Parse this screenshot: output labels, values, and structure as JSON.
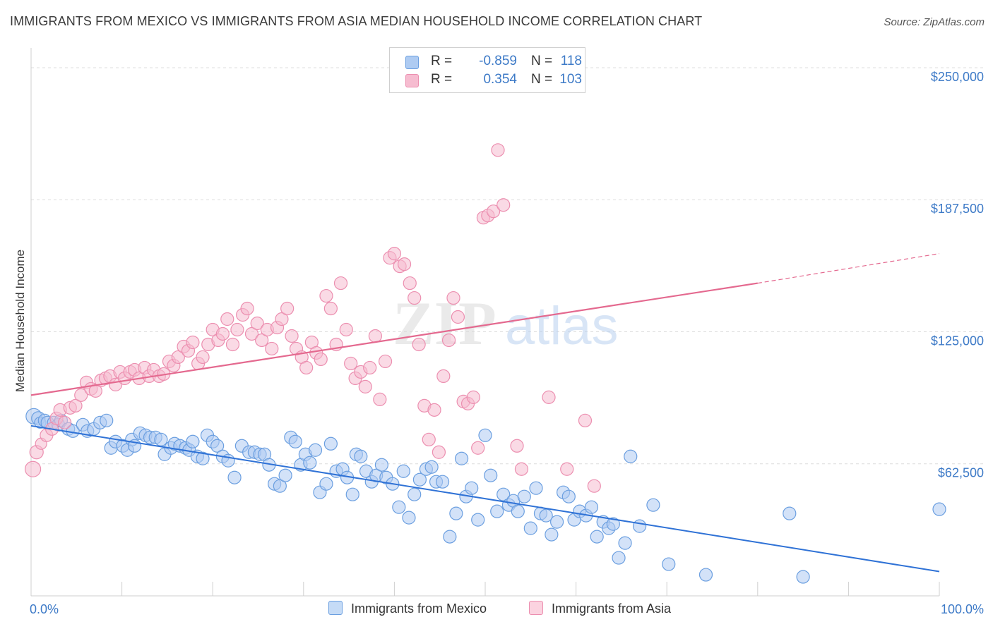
{
  "title": "IMMIGRANTS FROM MEXICO VS IMMIGRANTS FROM ASIA MEDIAN HOUSEHOLD INCOME CORRELATION CHART",
  "source": "Source: ZipAtlas.com",
  "watermark": "ZIPatlas",
  "colors": {
    "mexico_fill": "#aecbf2",
    "mexico_stroke": "#6b9fe0",
    "mexico_line": "#2f72d6",
    "asia_fill": "#f6bcd0",
    "asia_stroke": "#ec8fb0",
    "asia_line": "#e4698f",
    "axis_text": "#3d7ac7",
    "grid": "#dcdcdc"
  },
  "legend": {
    "r_label": "R =",
    "n_label": "N =",
    "rows": [
      {
        "r": "-0.859",
        "n": "118"
      },
      {
        "r": "0.354",
        "n": "103"
      }
    ]
  },
  "chart_data": {
    "type": "scatter",
    "title": "IMMIGRANTS FROM MEXICO VS IMMIGRANTS FROM ASIA MEDIAN HOUSEHOLD INCOME CORRELATION CHART",
    "xlabel": "",
    "ylabel": "Median Household Income",
    "x_tick_labels": [
      "0.0%",
      "100.0%"
    ],
    "y_tick_labels": [
      "$62,500",
      "$125,000",
      "$187,500",
      "$250,000"
    ],
    "y_ticks": [
      62500,
      125000,
      187500,
      250000
    ],
    "xlim": [
      0,
      100
    ],
    "ylim": [
      0,
      256000
    ],
    "grid": true,
    "legend_position": "top-center",
    "series": [
      {
        "name": "Immigrants from Mexico",
        "r": -0.859,
        "n": 118,
        "trend": {
          "x": [
            0,
            100
          ],
          "y": [
            80500,
            11500
          ],
          "dashed_from": null
        },
        "points": [
          [
            0.3,
            85
          ],
          [
            0.8,
            84
          ],
          [
            1.0,
            82
          ],
          [
            1.5,
            83
          ],
          [
            1.8,
            82
          ],
          [
            2.5,
            82
          ],
          [
            3.0,
            81
          ],
          [
            3.3,
            83
          ],
          [
            4.1,
            79
          ],
          [
            4.6,
            78
          ],
          [
            5.7,
            81
          ],
          [
            6.2,
            78
          ],
          [
            6.9,
            79
          ],
          [
            7.6,
            82
          ],
          [
            8.3,
            83
          ],
          [
            8.8,
            70
          ],
          [
            9.3,
            73
          ],
          [
            10.1,
            71
          ],
          [
            10.6,
            69
          ],
          [
            11.1,
            74
          ],
          [
            11.4,
            71
          ],
          [
            12.0,
            77
          ],
          [
            12.6,
            76
          ],
          [
            13.1,
            75
          ],
          [
            13.7,
            75
          ],
          [
            14.3,
            74
          ],
          [
            14.7,
            67
          ],
          [
            15.4,
            70
          ],
          [
            15.8,
            72
          ],
          [
            16.4,
            71
          ],
          [
            17.0,
            70
          ],
          [
            17.4,
            69
          ],
          [
            17.8,
            73
          ],
          [
            18.3,
            66
          ],
          [
            18.9,
            65
          ],
          [
            19.4,
            76
          ],
          [
            20.0,
            73
          ],
          [
            20.5,
            71
          ],
          [
            21.1,
            66
          ],
          [
            21.7,
            64
          ],
          [
            22.4,
            56
          ],
          [
            23.2,
            71
          ],
          [
            24.0,
            68
          ],
          [
            24.6,
            68
          ],
          [
            25.2,
            67
          ],
          [
            25.7,
            67
          ],
          [
            26.2,
            62
          ],
          [
            26.8,
            53
          ],
          [
            27.4,
            52
          ],
          [
            28.0,
            57
          ],
          [
            28.6,
            75
          ],
          [
            29.1,
            73
          ],
          [
            29.7,
            62
          ],
          [
            30.2,
            67
          ],
          [
            30.7,
            63
          ],
          [
            31.3,
            69
          ],
          [
            31.8,
            49
          ],
          [
            32.5,
            53
          ],
          [
            33.0,
            72
          ],
          [
            33.6,
            59
          ],
          [
            34.3,
            60
          ],
          [
            34.8,
            56
          ],
          [
            35.4,
            48
          ],
          [
            35.8,
            67
          ],
          [
            36.3,
            66
          ],
          [
            36.9,
            59
          ],
          [
            37.5,
            54
          ],
          [
            38.0,
            57
          ],
          [
            38.6,
            62
          ],
          [
            39.1,
            56
          ],
          [
            39.8,
            53
          ],
          [
            40.5,
            42
          ],
          [
            41.0,
            59
          ],
          [
            41.6,
            37
          ],
          [
            42.2,
            48
          ],
          [
            42.8,
            55
          ],
          [
            43.5,
            60
          ],
          [
            44.1,
            61
          ],
          [
            44.6,
            54
          ],
          [
            45.3,
            54
          ],
          [
            46.1,
            28
          ],
          [
            46.8,
            39
          ],
          [
            47.4,
            65
          ],
          [
            47.9,
            47
          ],
          [
            48.5,
            51
          ],
          [
            49.2,
            36
          ],
          [
            50.0,
            76
          ],
          [
            50.6,
            57
          ],
          [
            51.3,
            40
          ],
          [
            52.0,
            48
          ],
          [
            52.6,
            43
          ],
          [
            53.1,
            45
          ],
          [
            53.6,
            40
          ],
          [
            54.3,
            47
          ],
          [
            55.0,
            32
          ],
          [
            55.6,
            51
          ],
          [
            56.1,
            39
          ],
          [
            56.7,
            38
          ],
          [
            57.3,
            29
          ],
          [
            57.9,
            35
          ],
          [
            58.6,
            49
          ],
          [
            59.2,
            47
          ],
          [
            59.8,
            36
          ],
          [
            60.4,
            40
          ],
          [
            61.1,
            38
          ],
          [
            61.7,
            42
          ],
          [
            62.3,
            28
          ],
          [
            63.0,
            35
          ],
          [
            63.6,
            32
          ],
          [
            64.1,
            34
          ],
          [
            64.7,
            18
          ],
          [
            65.4,
            25
          ],
          [
            66.0,
            66
          ],
          [
            67.0,
            33
          ],
          [
            68.5,
            43
          ],
          [
            70.2,
            15
          ],
          [
            74.3,
            10
          ],
          [
            83.5,
            39
          ],
          [
            85.0,
            9
          ],
          [
            100.0,
            41
          ]
        ],
        "points_units": "x in percent, y in thousands of dollars"
      },
      {
        "name": "Immigrants from Asia",
        "r": 0.354,
        "n": 103,
        "trend": {
          "x": [
            0,
            80,
            100
          ],
          "y": [
            95000,
            148000,
            162000
          ],
          "dashed_from": 80
        },
        "points": [
          [
            0.2,
            60
          ],
          [
            0.6,
            68
          ],
          [
            1.1,
            72
          ],
          [
            1.7,
            76
          ],
          [
            2.3,
            79
          ],
          [
            2.8,
            84
          ],
          [
            3.2,
            88
          ],
          [
            3.7,
            82
          ],
          [
            4.3,
            89
          ],
          [
            4.9,
            90
          ],
          [
            5.5,
            95
          ],
          [
            6.1,
            101
          ],
          [
            6.6,
            98
          ],
          [
            7.1,
            97
          ],
          [
            7.7,
            102
          ],
          [
            8.2,
            103
          ],
          [
            8.7,
            104
          ],
          [
            9.3,
            100
          ],
          [
            9.8,
            106
          ],
          [
            10.3,
            103
          ],
          [
            10.9,
            106
          ],
          [
            11.4,
            107
          ],
          [
            11.9,
            103
          ],
          [
            12.5,
            108
          ],
          [
            13.0,
            104
          ],
          [
            13.5,
            107
          ],
          [
            14.1,
            104
          ],
          [
            14.6,
            105
          ],
          [
            15.2,
            111
          ],
          [
            15.7,
            109
          ],
          [
            16.2,
            113
          ],
          [
            16.8,
            118
          ],
          [
            17.3,
            116
          ],
          [
            17.8,
            120
          ],
          [
            18.4,
            110
          ],
          [
            18.9,
            113
          ],
          [
            19.5,
            119
          ],
          [
            20.0,
            126
          ],
          [
            20.6,
            121
          ],
          [
            21.1,
            124
          ],
          [
            21.6,
            131
          ],
          [
            22.2,
            119
          ],
          [
            22.7,
            126
          ],
          [
            23.3,
            133
          ],
          [
            23.8,
            136
          ],
          [
            24.3,
            124
          ],
          [
            24.9,
            129
          ],
          [
            25.4,
            121
          ],
          [
            26.0,
            126
          ],
          [
            26.5,
            117
          ],
          [
            27.1,
            127
          ],
          [
            27.6,
            131
          ],
          [
            28.2,
            136
          ],
          [
            28.7,
            123
          ],
          [
            29.2,
            117
          ],
          [
            29.8,
            113
          ],
          [
            30.3,
            108
          ],
          [
            30.9,
            120
          ],
          [
            31.4,
            115
          ],
          [
            31.9,
            112
          ],
          [
            32.5,
            142
          ],
          [
            33.0,
            136
          ],
          [
            33.6,
            119
          ],
          [
            34.1,
            148
          ],
          [
            34.7,
            126
          ],
          [
            35.2,
            110
          ],
          [
            35.7,
            103
          ],
          [
            36.3,
            106
          ],
          [
            36.8,
            99
          ],
          [
            37.3,
            108
          ],
          [
            37.9,
            123
          ],
          [
            38.4,
            93
          ],
          [
            39.0,
            111
          ],
          [
            39.5,
            160
          ],
          [
            40.0,
            162
          ],
          [
            40.6,
            156
          ],
          [
            41.1,
            157
          ],
          [
            41.7,
            148
          ],
          [
            42.2,
            141
          ],
          [
            42.7,
            119
          ],
          [
            43.3,
            90
          ],
          [
            43.8,
            74
          ],
          [
            44.4,
            88
          ],
          [
            44.9,
            68
          ],
          [
            45.4,
            104
          ],
          [
            46.0,
            121
          ],
          [
            46.5,
            141
          ],
          [
            47.0,
            132
          ],
          [
            47.6,
            92
          ],
          [
            48.1,
            91
          ],
          [
            48.7,
            94
          ],
          [
            49.2,
            70
          ],
          [
            49.8,
            179
          ],
          [
            50.3,
            180
          ],
          [
            50.9,
            182
          ],
          [
            51.4,
            211
          ],
          [
            52.0,
            185
          ],
          [
            53.5,
            71
          ],
          [
            54.0,
            60
          ],
          [
            57.0,
            94
          ],
          [
            59.0,
            60
          ],
          [
            61.0,
            83
          ],
          [
            62.0,
            52
          ]
        ],
        "points_units": "x in percent, y in thousands of dollars"
      }
    ]
  },
  "bottom_legend": [
    {
      "label": "Immigrants from Mexico"
    },
    {
      "label": "Immigrants from Asia"
    }
  ]
}
